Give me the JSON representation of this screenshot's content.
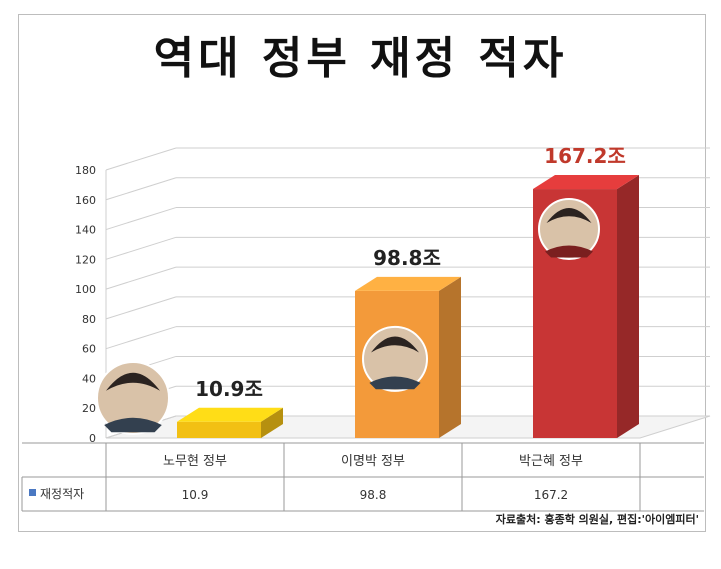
{
  "title": "역대 정부 재정 적자",
  "source": "자료출처: 홍종학 의원실, 편집:'아이엠피터'",
  "colors": {
    "bar1": "#f2c014",
    "bar2": "#f39a3a",
    "bar3": "#c83535",
    "grid": "#cfcfcf",
    "value_text_dark": "#222222",
    "value_text_red": "#c0392b",
    "legend_marker": "#4a78c2"
  },
  "chart_data": {
    "type": "bar",
    "style": "3d-column",
    "categories": [
      "노무현 정부",
      "이명박 정부",
      "박근혜 정부"
    ],
    "series": [
      {
        "name": "재정적자",
        "values": [
          10.9,
          98.8,
          167.2
        ]
      }
    ],
    "data_labels": [
      "10.9조",
      "98.8조",
      "167.2조"
    ],
    "table_values": [
      "10.9",
      "98.8",
      "167.2"
    ],
    "ylim": [
      0,
      180
    ],
    "yticks": [
      "0",
      "20",
      "40",
      "60",
      "80",
      "100",
      "120",
      "140",
      "160",
      "180"
    ],
    "grid": true,
    "legend": "data-table"
  }
}
